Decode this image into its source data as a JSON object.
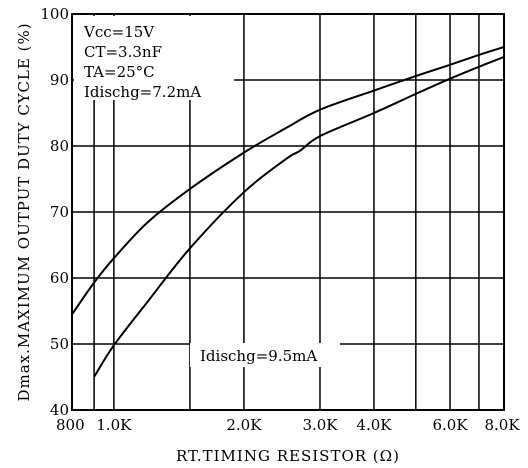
{
  "chart_data": {
    "type": "line",
    "title": "",
    "xlabel": "RT.TIMING RESISTOR (Ω)",
    "ylabel": "Dmax.MAXIMUM OUTPUT DUTY CYCLE (%)",
    "x_scale": "log",
    "xlim": [
      800,
      8000
    ],
    "ylim": [
      40,
      100
    ],
    "grid": true,
    "x_ticks": [
      800,
      1000,
      2000,
      3000,
      4000,
      6000,
      8000
    ],
    "x_tick_labels": [
      "800",
      "1.0K",
      "2.0K",
      "3.0K",
      "4.0K",
      "6.0K",
      "8.0K"
    ],
    "x_minor_grid": [
      900,
      1500,
      5000,
      7000
    ],
    "y_ticks": [
      40,
      50,
      60,
      70,
      80,
      90,
      100
    ],
    "y_tick_labels": [
      "40",
      "50",
      "60",
      "70",
      "80",
      "90",
      "100"
    ],
    "conditions": [
      "Vcc=15V",
      "CT=3.3nF",
      "TA=25°C",
      "Idischg=7.2mA"
    ],
    "series": [
      {
        "name": "Idischg=7.2mA",
        "x": [
          800,
          900,
          1000,
          1200,
          1500,
          2000,
          2500,
          3000,
          4000,
          5000,
          6000,
          7000,
          8000
        ],
        "y": [
          54.5,
          59.3,
          63.0,
          68.5,
          73.5,
          79.0,
          82.7,
          85.5,
          88.4,
          90.6,
          92.3,
          93.8,
          95.0
        ]
      },
      {
        "name": "Idischg=9.5mA",
        "x": [
          900,
          1000,
          1200,
          1500,
          2000,
          2500,
          2700,
          3000,
          4000,
          5000,
          6000,
          7000,
          8000
        ],
        "y": [
          45.0,
          49.8,
          56.5,
          64.5,
          73.0,
          78.0,
          79.3,
          81.5,
          85.0,
          87.9,
          90.2,
          92.0,
          93.5
        ]
      }
    ],
    "annotations": [
      {
        "text": "Idischg=9.5mA"
      }
    ]
  }
}
